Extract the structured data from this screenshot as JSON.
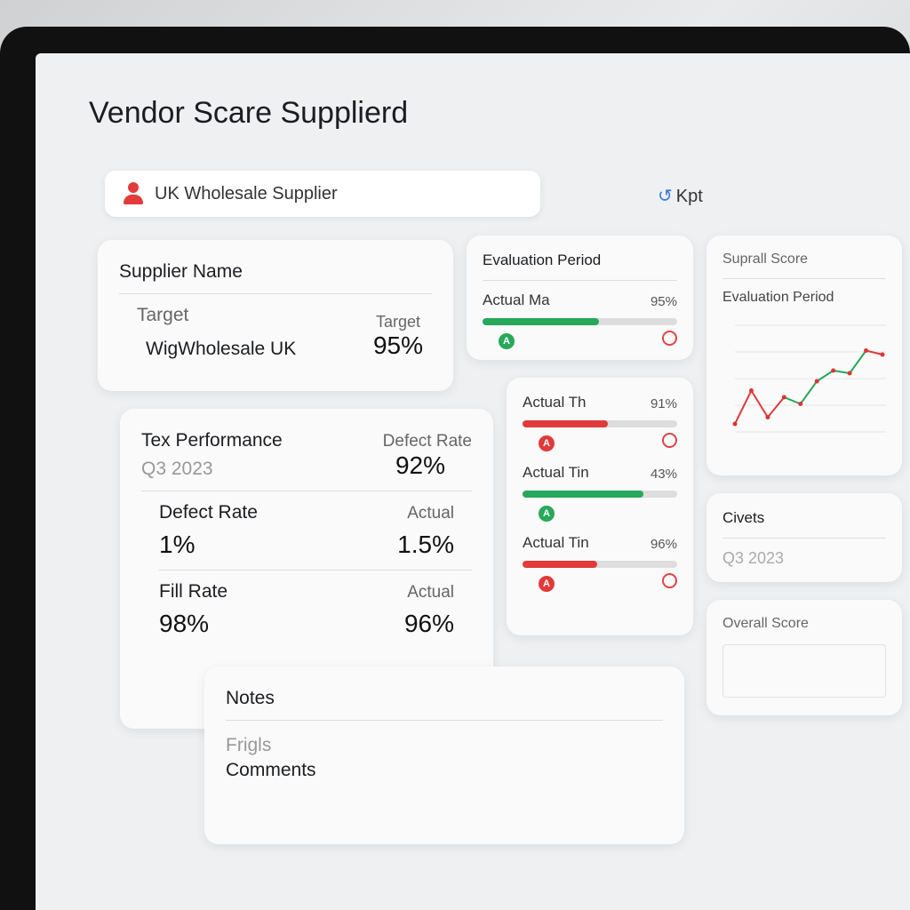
{
  "header": {
    "title": "Vendor Scare Supplierd"
  },
  "search": {
    "value": "UK Wholesale Supplier",
    "icon": "user-icon"
  },
  "kpt": {
    "label": "Kpt",
    "icon": "refresh-icon"
  },
  "supplier_card": {
    "heading": "Supplier Name",
    "left_label": "Target",
    "left_value": "WigWholesale UK",
    "right_label": "Target",
    "right_value": "95%"
  },
  "performance_card": {
    "heading": "Tex Performance",
    "period": "Q3 2023",
    "defect_label": "Defect Rate",
    "defect_value": "92%",
    "rows": [
      {
        "label": "Defect Rate",
        "value": "1%",
        "actual_label": "Actual",
        "actual_value": "1.5%"
      },
      {
        "label": "Fill Rate",
        "value": "98%",
        "actual_label": "Actual",
        "actual_value": "96%"
      }
    ]
  },
  "evaluation_card": {
    "heading": "Evaluation Period",
    "metric": {
      "label": "Actual Ma",
      "value": "95%",
      "fill": 0.6,
      "status": "good"
    }
  },
  "metrics_card": {
    "items": [
      {
        "label": "Actual Th",
        "value": "91%",
        "fill": 0.55,
        "status": "bad"
      },
      {
        "label": "Actual Tin",
        "value": "43%",
        "fill": 0.78,
        "status": "good"
      },
      {
        "label": "Actual Tin",
        "value": "96%",
        "fill": 0.48,
        "status": "bad"
      }
    ]
  },
  "colors": {
    "good": "#27a85a",
    "bad": "#e03a3a"
  },
  "chart_card": {
    "title": "Suprall Score",
    "subtitle": "Evaluation Period"
  },
  "chart_data": {
    "type": "line",
    "grid": true,
    "values": [
      30,
      55,
      35,
      50,
      45,
      62,
      70,
      68,
      85,
      82
    ],
    "colors": [
      "#e03a3a",
      "#27a85a",
      "#e03a3a"
    ]
  },
  "period_card": {
    "heading": "Civets",
    "value": "Q3 2023"
  },
  "overall_card": {
    "heading": "Overall Score"
  },
  "notes_card": {
    "heading": "Notes",
    "label": "Frigls",
    "value": "Comments"
  }
}
